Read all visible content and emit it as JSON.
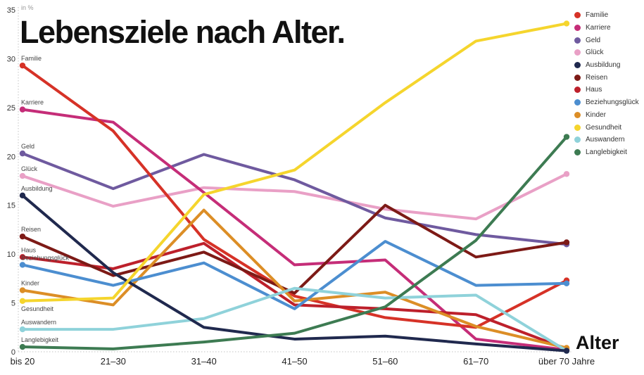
{
  "title": "Lebensziele nach Alter.",
  "y_axis_unit_label": "in %",
  "x_axis_title": "Alter",
  "chart_data": {
    "type": "line",
    "title": "Lebensziele nach Alter.",
    "xlabel": "Alter",
    "ylabel": "in %",
    "ylim": [
      0,
      35
    ],
    "yticks": [
      0,
      5,
      10,
      15,
      20,
      25,
      30,
      35
    ],
    "grid": "dotted left axis and dotted zero baseline only",
    "legend_position": "right",
    "series_labels_at_line_start": true,
    "categories": [
      "bis 20",
      "21–30",
      "31–40",
      "41–50",
      "51–60",
      "61–70",
      "über 70 Jahre"
    ],
    "series": [
      {
        "name": "Familie",
        "color": "#d63227",
        "label_side": "above",
        "values": [
          29.3,
          22.6,
          11.5,
          5.7,
          3.5,
          2.5,
          7.3
        ]
      },
      {
        "name": "Karriere",
        "color": "#c52d78",
        "label_side": "above",
        "values": [
          24.8,
          23.5,
          16.3,
          8.9,
          9.4,
          1.3,
          0.2
        ]
      },
      {
        "name": "Geld",
        "color": "#6f5a9f",
        "label_side": "above",
        "values": [
          20.3,
          16.7,
          20.2,
          17.6,
          13.7,
          12.0,
          11.0
        ]
      },
      {
        "name": "Glück",
        "color": "#e9a0c6",
        "label_side": "above",
        "values": [
          18.0,
          14.9,
          16.8,
          16.4,
          14.6,
          13.6,
          18.2
        ]
      },
      {
        "name": "Ausbildung",
        "color": "#20294e",
        "label_side": "above",
        "values": [
          16.0,
          8.1,
          2.5,
          1.3,
          1.6,
          0.8,
          0.1
        ]
      },
      {
        "name": "Reisen",
        "color": "#7d1a16",
        "label_side": "above",
        "values": [
          11.8,
          7.8,
          10.2,
          6.0,
          15.0,
          9.7,
          11.2
        ]
      },
      {
        "name": "Haus",
        "color": "#bd202b",
        "label_side": "above",
        "values": [
          9.7,
          8.5,
          11.1,
          4.8,
          4.4,
          3.8,
          0.3
        ]
      },
      {
        "name": "Beziehungsglück",
        "color": "#4c8ed0",
        "label_side": "above",
        "values": [
          8.9,
          6.8,
          9.1,
          4.4,
          11.3,
          6.8,
          7.0
        ]
      },
      {
        "name": "Kinder",
        "color": "#dc8e26",
        "label_side": "above",
        "values": [
          6.3,
          4.8,
          14.5,
          5.2,
          6.1,
          2.6,
          0.4
        ]
      },
      {
        "name": "Gesundheit",
        "color": "#f5d52d",
        "label_side": "below",
        "values": [
          5.2,
          5.5,
          16.1,
          18.6,
          25.5,
          31.8,
          33.6
        ]
      },
      {
        "name": "Auswandern",
        "color": "#8fd2da",
        "label_side": "above",
        "values": [
          2.3,
          2.3,
          3.4,
          6.5,
          5.5,
          5.8,
          0.1
        ]
      },
      {
        "name": "Langlebigkeit",
        "color": "#3d7b52",
        "label_side": "above",
        "values": [
          0.5,
          0.3,
          1.0,
          1.9,
          4.6,
          11.4,
          22.0
        ]
      }
    ]
  }
}
